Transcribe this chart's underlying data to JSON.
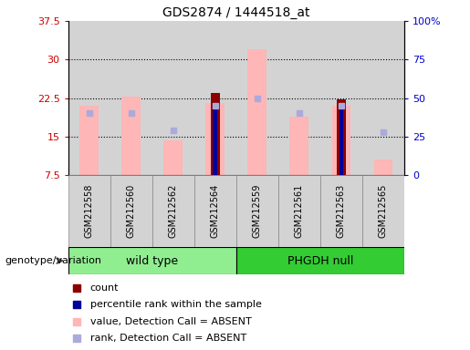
{
  "title": "GDS2874 / 1444518_at",
  "samples": [
    "GSM212558",
    "GSM212560",
    "GSM212562",
    "GSM212564",
    "GSM212559",
    "GSM212561",
    "GSM212563",
    "GSM212565"
  ],
  "group1_label": "wild type",
  "group2_label": "PHGDH null",
  "genotype_label": "genotype/variation",
  "ylim": [
    7.5,
    37.5
  ],
  "ylim_right": [
    0,
    100
  ],
  "yticks_left": [
    7.5,
    15,
    22.5,
    30,
    37.5
  ],
  "ytick_labels_left": [
    "7.5",
    "15",
    "22.5",
    "30",
    "37.5"
  ],
  "yticks_right": [
    0,
    25,
    50,
    75,
    100
  ],
  "ytick_labels_right": [
    "0",
    "25",
    "50",
    "75",
    "100%"
  ],
  "pink_bar_heights": [
    21.0,
    22.8,
    14.2,
    21.5,
    32.0,
    18.8,
    21.0,
    10.5
  ],
  "red_bar_heights": [
    0.0,
    0.0,
    0.0,
    23.5,
    0.0,
    0.0,
    22.3,
    0.0
  ],
  "blue_sq_y": [
    19.5,
    19.5,
    16.2,
    21.0,
    22.5,
    19.5,
    21.0,
    15.8
  ],
  "blue_dark_bar_h": [
    0.0,
    0.0,
    0.0,
    21.3,
    0.0,
    0.0,
    21.5,
    0.0
  ],
  "background_gray": "#d3d3d3",
  "color_pink": "#ffb6b6",
  "color_red": "#8b0000",
  "color_blue_sq": "#aaaadd",
  "color_blue_dark": "#000099",
  "color_green_wt": "#90ee90",
  "color_green_null": "#33cc33",
  "left_tick_color": "#cc0000",
  "right_tick_color": "#0000cc",
  "ymin": 7.5
}
